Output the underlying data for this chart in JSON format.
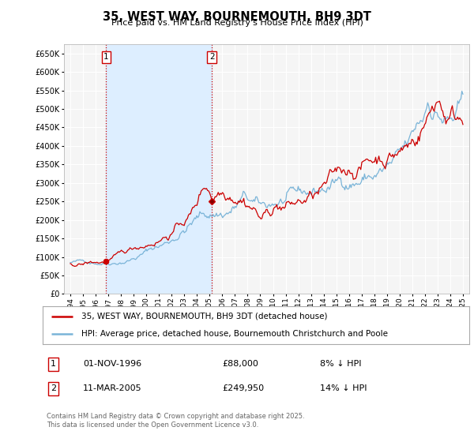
{
  "title": "35, WEST WAY, BOURNEMOUTH, BH9 3DT",
  "subtitle": "Price paid vs. HM Land Registry's House Price Index (HPI)",
  "legend_line1": "35, WEST WAY, BOURNEMOUTH, BH9 3DT (detached house)",
  "legend_line2": "HPI: Average price, detached house, Bournemouth Christchurch and Poole",
  "footer": "Contains HM Land Registry data © Crown copyright and database right 2025.\nThis data is licensed under the Open Government Licence v3.0.",
  "annotation1_date": "01-NOV-1996",
  "annotation1_price": "£88,000",
  "annotation1_hpi": "8% ↓ HPI",
  "annotation2_date": "11-MAR-2005",
  "annotation2_price": "£249,950",
  "annotation2_hpi": "14% ↓ HPI",
  "sale1_year": 1996.833,
  "sale1_value": 88000,
  "sale2_year": 2005.19,
  "sale2_value": 249950,
  "hpi_color": "#7ab4d8",
  "price_color": "#cc0000",
  "shade_color": "#ddeeff",
  "ylim": [
    0,
    675000
  ],
  "yticks": [
    0,
    50000,
    100000,
    150000,
    200000,
    250000,
    300000,
    350000,
    400000,
    450000,
    500000,
    550000,
    600000,
    650000
  ],
  "xlim_start": 1993.5,
  "xlim_end": 2025.5,
  "background_color": "#ffffff",
  "plot_bg_color": "#f5f5f5",
  "grid_color": "#ffffff"
}
